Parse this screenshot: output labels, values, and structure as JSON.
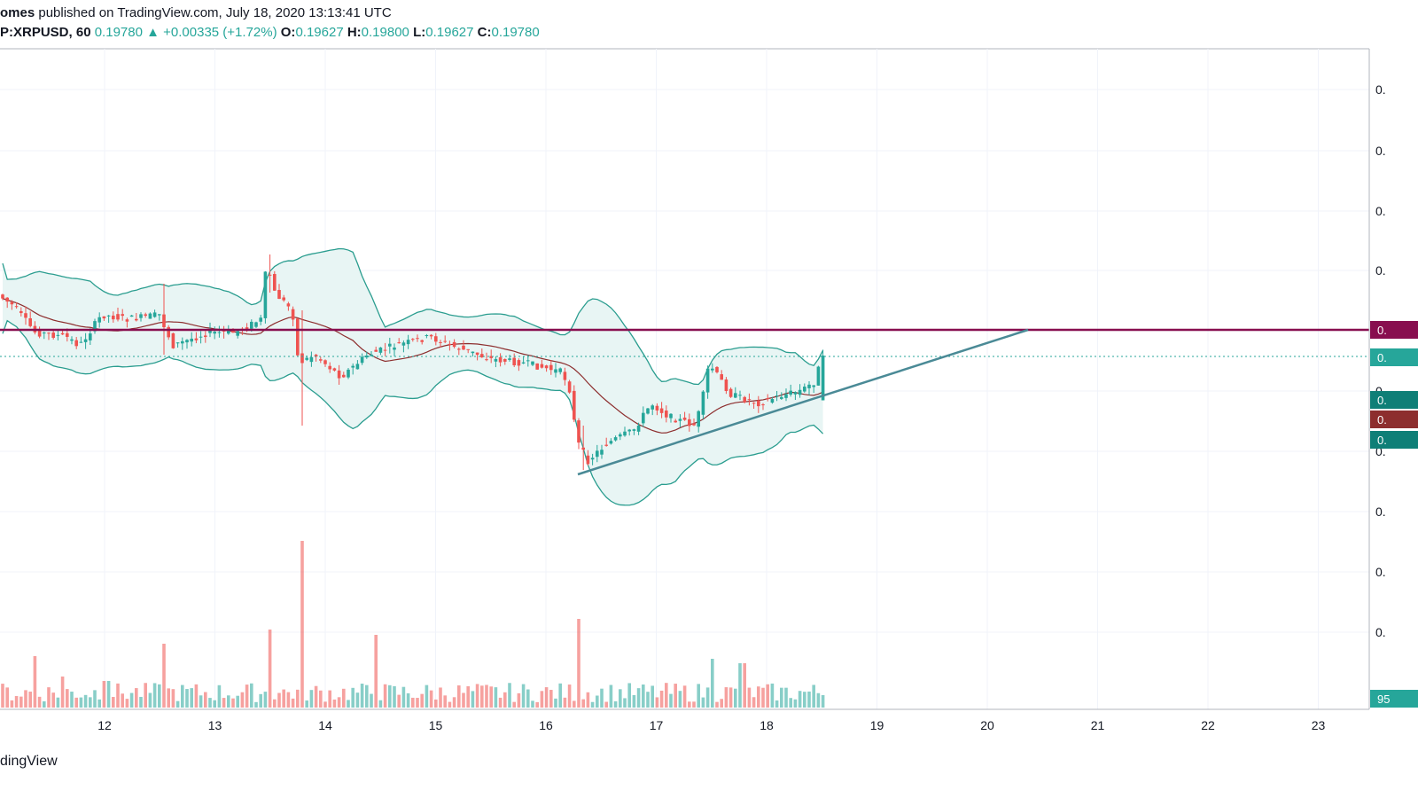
{
  "header": {
    "author": "omes",
    "published": "published on TradingView.com, July 18, 2020 13:13:41 UTC",
    "symbol": "P:XRPUSD, 60",
    "last": "0.19780",
    "arrow": "▲",
    "change": "+0.00335 (+1.72%)",
    "o_label": "O:",
    "o_value": "0.19627",
    "h_label": "H:",
    "h_value": "0.19800",
    "l_label": "L:",
    "l_value": "0.19627",
    "c_label": "C:",
    "c_value": "0.19780"
  },
  "footer": {
    "brand": "dingView"
  },
  "colors": {
    "up": "#26a69a",
    "down": "#ef5350",
    "resistance": "#880e4f",
    "trendline": "#4a8a96",
    "basis": "#8d2e2e",
    "band": "#2a9d8f",
    "band_fill": "#e8f5f4",
    "grid": "#f0f3fa"
  },
  "chart_data": {
    "type": "candlestick",
    "symbol": "XRPUSD",
    "interval": "60",
    "x_ticks": [
      "12",
      "13",
      "14",
      "15",
      "16",
      "17",
      "18",
      "19",
      "20",
      "21",
      "22",
      "23"
    ],
    "y_ticks": [
      "0.",
      "0.",
      "0.",
      "0.",
      "0.",
      "0.",
      "0.",
      "0.",
      "0.",
      "0."
    ],
    "y_range_visible": "unlabeled (truncated price axis)",
    "price_badges": [
      {
        "text": "0.",
        "color": "#880e4f",
        "role": "resistance"
      },
      {
        "text": "0.",
        "color": "#26a69a",
        "role": "last price"
      },
      {
        "text": "0.",
        "color": "#0f7f77",
        "role": "band upper"
      },
      {
        "text": "0.",
        "color": "#8d2e2e",
        "role": "band basis"
      },
      {
        "text": "0.",
        "color": "#0f7f77",
        "role": "band lower"
      },
      {
        "text": "95",
        "color": "#26a69a",
        "role": "volume"
      }
    ],
    "indicators": [
      "Bollinger Bands (upper, basis, lower)",
      "Volume"
    ],
    "drawings": [
      "horizontal resistance line",
      "ascending trendline from Jul 16 low"
    ],
    "last_close": 0.1978,
    "grid": true
  }
}
